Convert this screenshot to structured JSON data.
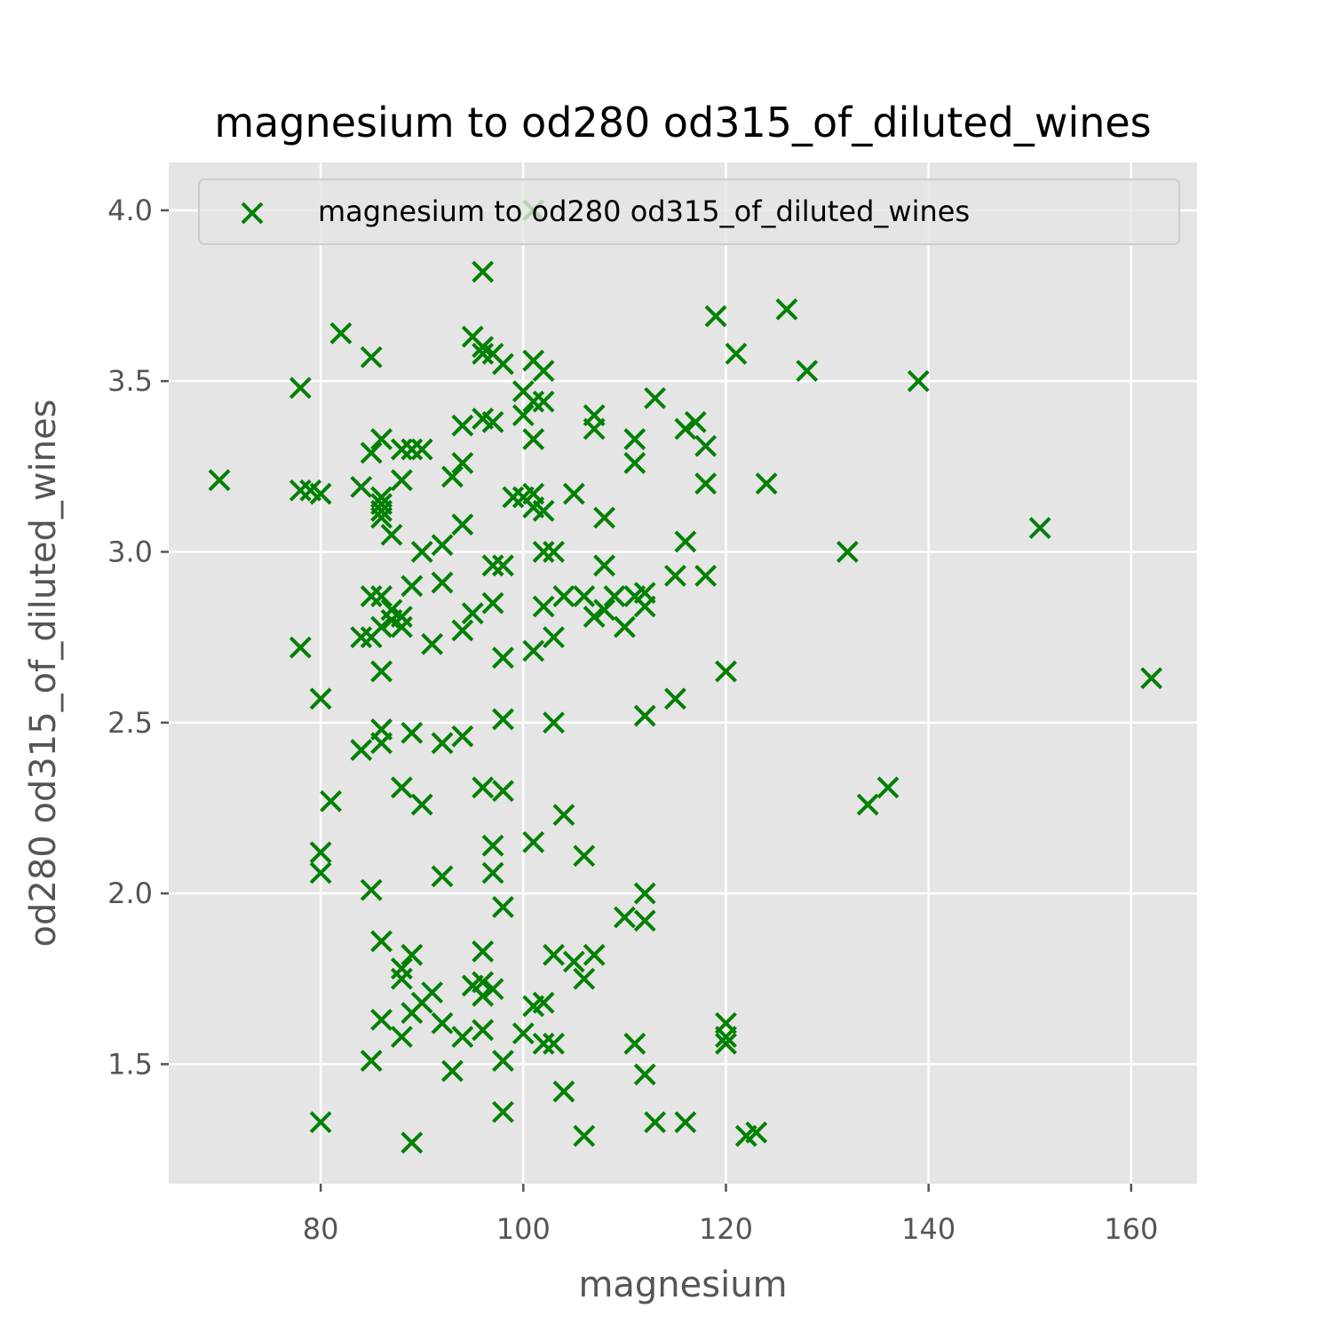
{
  "chart_data": {
    "type": "scatter",
    "title": "magnesium to od280 od315_of_diluted_wines",
    "xlabel": "magnesium",
    "ylabel": "od280 od315_of_diluted_wines",
    "xlim": [
      65,
      166.5
    ],
    "ylim": [
      1.15,
      4.14
    ],
    "xticks": [
      80,
      100,
      120,
      140,
      160
    ],
    "yticks": [
      1.5,
      2.0,
      2.5,
      3.0,
      3.5,
      4.0
    ],
    "xtick_labels": [
      "80",
      "100",
      "120",
      "140",
      "160"
    ],
    "ytick_labels": [
      "1.5",
      "2.0",
      "2.5",
      "3.0",
      "3.5",
      "4.0"
    ],
    "grid": true,
    "legend_position": "top",
    "marker": "x",
    "colors": {
      "marker": "#008000",
      "plot_bg": "#E5E5E5",
      "grid": "#FFFFFF"
    },
    "series": [
      {
        "name": "magnesium to od280 od315_of_diluted_wines",
        "points": [
          [
            70,
            3.21
          ],
          [
            78,
            3.48
          ],
          [
            78,
            3.18
          ],
          [
            78,
            2.72
          ],
          [
            79,
            3.18
          ],
          [
            80,
            3.17
          ],
          [
            80,
            2.57
          ],
          [
            80,
            2.12
          ],
          [
            80,
            2.06
          ],
          [
            80,
            1.33
          ],
          [
            81,
            2.27
          ],
          [
            82,
            3.64
          ],
          [
            84,
            3.19
          ],
          [
            84,
            2.75
          ],
          [
            84,
            2.42
          ],
          [
            85,
            3.57
          ],
          [
            85,
            3.29
          ],
          [
            85,
            2.87
          ],
          [
            85,
            2.75
          ],
          [
            85,
            2.01
          ],
          [
            85,
            1.51
          ],
          [
            86,
            3.33
          ],
          [
            86,
            3.16
          ],
          [
            86,
            3.14
          ],
          [
            86,
            3.12
          ],
          [
            86,
            3.1
          ],
          [
            86,
            2.87
          ],
          [
            86,
            2.78
          ],
          [
            86,
            2.65
          ],
          [
            86,
            2.48
          ],
          [
            86,
            2.44
          ],
          [
            86,
            1.86
          ],
          [
            86,
            1.63
          ],
          [
            87,
            3.05
          ],
          [
            87,
            2.8
          ],
          [
            87,
            2.83
          ],
          [
            88,
            3.3
          ],
          [
            88,
            3.21
          ],
          [
            88,
            2.81
          ],
          [
            88,
            2.78
          ],
          [
            88,
            2.31
          ],
          [
            88,
            1.78
          ],
          [
            88,
            1.75
          ],
          [
            88,
            1.58
          ],
          [
            89,
            3.3
          ],
          [
            89,
            2.9
          ],
          [
            89,
            2.47
          ],
          [
            89,
            1.82
          ],
          [
            89,
            1.65
          ],
          [
            89,
            1.27
          ],
          [
            90,
            3.0
          ],
          [
            90,
            3.3
          ],
          [
            90,
            2.26
          ],
          [
            90,
            1.68
          ],
          [
            91,
            2.73
          ],
          [
            91,
            1.71
          ],
          [
            92,
            3.02
          ],
          [
            92,
            2.91
          ],
          [
            92,
            2.44
          ],
          [
            92,
            2.05
          ],
          [
            92,
            1.62
          ],
          [
            93,
            3.22
          ],
          [
            93,
            1.48
          ],
          [
            94,
            3.37
          ],
          [
            94,
            3.26
          ],
          [
            94,
            3.08
          ],
          [
            94,
            2.77
          ],
          [
            94,
            2.46
          ],
          [
            94,
            1.58
          ],
          [
            95,
            3.63
          ],
          [
            95,
            2.82
          ],
          [
            95,
            1.73
          ],
          [
            96,
            3.82
          ],
          [
            96,
            3.58
          ],
          [
            96,
            3.6
          ],
          [
            96,
            3.39
          ],
          [
            96,
            2.31
          ],
          [
            96,
            1.83
          ],
          [
            96,
            1.74
          ],
          [
            96,
            1.7
          ],
          [
            96,
            1.6
          ],
          [
            97,
            3.58
          ],
          [
            97,
            3.38
          ],
          [
            97,
            2.96
          ],
          [
            97,
            2.85
          ],
          [
            97,
            2.14
          ],
          [
            97,
            2.06
          ],
          [
            97,
            1.72
          ],
          [
            98,
            3.55
          ],
          [
            98,
            2.96
          ],
          [
            98,
            2.69
          ],
          [
            98,
            2.51
          ],
          [
            98,
            2.3
          ],
          [
            98,
            1.96
          ],
          [
            98,
            1.51
          ],
          [
            98,
            1.36
          ],
          [
            99,
            3.16
          ],
          [
            100,
            3.4
          ],
          [
            100,
            3.47
          ],
          [
            100,
            3.16
          ],
          [
            100,
            1.59
          ],
          [
            101,
            4.0
          ],
          [
            101,
            3.56
          ],
          [
            101,
            3.44
          ],
          [
            101,
            3.33
          ],
          [
            101,
            3.17
          ],
          [
            101,
            3.13
          ],
          [
            101,
            2.71
          ],
          [
            101,
            2.15
          ],
          [
            101,
            1.67
          ],
          [
            102,
            3.53
          ],
          [
            102,
            3.44
          ],
          [
            102,
            3.0
          ],
          [
            102,
            3.12
          ],
          [
            102,
            2.84
          ],
          [
            102,
            1.68
          ],
          [
            102,
            1.56
          ],
          [
            103,
            3.0
          ],
          [
            103,
            2.75
          ],
          [
            103,
            2.5
          ],
          [
            103,
            1.82
          ],
          [
            103,
            1.56
          ],
          [
            104,
            2.87
          ],
          [
            104,
            2.23
          ],
          [
            104,
            1.42
          ],
          [
            105,
            3.17
          ],
          [
            105,
            1.8
          ],
          [
            106,
            2.87
          ],
          [
            106,
            2.11
          ],
          [
            106,
            1.75
          ],
          [
            106,
            1.29
          ],
          [
            107,
            3.4
          ],
          [
            107,
            3.36
          ],
          [
            107,
            2.81
          ],
          [
            107,
            1.82
          ],
          [
            108,
            3.1
          ],
          [
            108,
            2.96
          ],
          [
            108,
            2.83
          ],
          [
            109,
            2.87
          ],
          [
            110,
            2.78
          ],
          [
            110,
            1.93
          ],
          [
            111,
            3.33
          ],
          [
            111,
            3.26
          ],
          [
            111,
            2.87
          ],
          [
            111,
            1.56
          ],
          [
            112,
            2.88
          ],
          [
            112,
            2.84
          ],
          [
            112,
            2.52
          ],
          [
            112,
            2.0
          ],
          [
            112,
            1.92
          ],
          [
            112,
            1.47
          ],
          [
            113,
            3.45
          ],
          [
            113,
            1.33
          ],
          [
            115,
            2.93
          ],
          [
            115,
            2.57
          ],
          [
            116,
            3.36
          ],
          [
            116,
            3.03
          ],
          [
            116,
            1.33
          ],
          [
            117,
            3.38
          ],
          [
            118,
            3.31
          ],
          [
            118,
            3.2
          ],
          [
            118,
            2.93
          ],
          [
            119,
            3.69
          ],
          [
            120,
            2.65
          ],
          [
            120,
            1.62
          ],
          [
            120,
            1.58
          ],
          [
            120,
            1.56
          ],
          [
            121,
            3.58
          ],
          [
            122,
            1.29
          ],
          [
            123,
            1.3
          ],
          [
            124,
            3.2
          ],
          [
            126,
            3.71
          ],
          [
            128,
            3.53
          ],
          [
            132,
            3.0
          ],
          [
            134,
            2.26
          ],
          [
            136,
            2.31
          ],
          [
            139,
            3.5
          ],
          [
            151,
            3.07
          ],
          [
            162,
            2.63
          ]
        ]
      }
    ]
  }
}
